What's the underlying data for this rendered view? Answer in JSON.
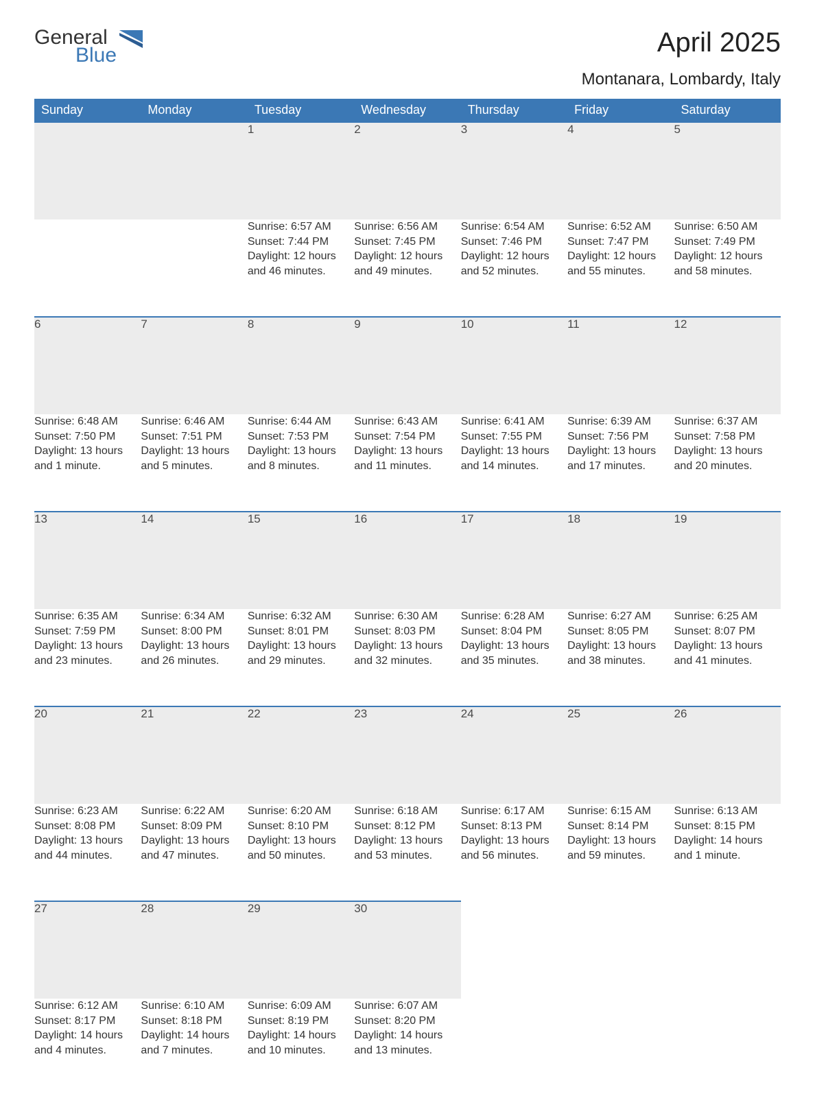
{
  "logo": {
    "general": "General",
    "blue": "Blue"
  },
  "title": "April 2025",
  "subtitle": "Montanara, Lombardy, Italy",
  "colors": {
    "header_bg": "#3b78b5",
    "header_text": "#ffffff",
    "daynum_bg": "#ececec",
    "row_border": "#3b78b5",
    "body_text": "#333333",
    "logo_blue": "#3b78b5"
  },
  "weekdays": [
    "Sunday",
    "Monday",
    "Tuesday",
    "Wednesday",
    "Thursday",
    "Friday",
    "Saturday"
  ],
  "weeks": [
    [
      null,
      null,
      {
        "day": "1",
        "sunrise": "6:57 AM",
        "sunset": "7:44 PM",
        "daylight": "12 hours and 46 minutes."
      },
      {
        "day": "2",
        "sunrise": "6:56 AM",
        "sunset": "7:45 PM",
        "daylight": "12 hours and 49 minutes."
      },
      {
        "day": "3",
        "sunrise": "6:54 AM",
        "sunset": "7:46 PM",
        "daylight": "12 hours and 52 minutes."
      },
      {
        "day": "4",
        "sunrise": "6:52 AM",
        "sunset": "7:47 PM",
        "daylight": "12 hours and 55 minutes."
      },
      {
        "day": "5",
        "sunrise": "6:50 AM",
        "sunset": "7:49 PM",
        "daylight": "12 hours and 58 minutes."
      }
    ],
    [
      {
        "day": "6",
        "sunrise": "6:48 AM",
        "sunset": "7:50 PM",
        "daylight": "13 hours and 1 minute."
      },
      {
        "day": "7",
        "sunrise": "6:46 AM",
        "sunset": "7:51 PM",
        "daylight": "13 hours and 5 minutes."
      },
      {
        "day": "8",
        "sunrise": "6:44 AM",
        "sunset": "7:53 PM",
        "daylight": "13 hours and 8 minutes."
      },
      {
        "day": "9",
        "sunrise": "6:43 AM",
        "sunset": "7:54 PM",
        "daylight": "13 hours and 11 minutes."
      },
      {
        "day": "10",
        "sunrise": "6:41 AM",
        "sunset": "7:55 PM",
        "daylight": "13 hours and 14 minutes."
      },
      {
        "day": "11",
        "sunrise": "6:39 AM",
        "sunset": "7:56 PM",
        "daylight": "13 hours and 17 minutes."
      },
      {
        "day": "12",
        "sunrise": "6:37 AM",
        "sunset": "7:58 PM",
        "daylight": "13 hours and 20 minutes."
      }
    ],
    [
      {
        "day": "13",
        "sunrise": "6:35 AM",
        "sunset": "7:59 PM",
        "daylight": "13 hours and 23 minutes."
      },
      {
        "day": "14",
        "sunrise": "6:34 AM",
        "sunset": "8:00 PM",
        "daylight": "13 hours and 26 minutes."
      },
      {
        "day": "15",
        "sunrise": "6:32 AM",
        "sunset": "8:01 PM",
        "daylight": "13 hours and 29 minutes."
      },
      {
        "day": "16",
        "sunrise": "6:30 AM",
        "sunset": "8:03 PM",
        "daylight": "13 hours and 32 minutes."
      },
      {
        "day": "17",
        "sunrise": "6:28 AM",
        "sunset": "8:04 PM",
        "daylight": "13 hours and 35 minutes."
      },
      {
        "day": "18",
        "sunrise": "6:27 AM",
        "sunset": "8:05 PM",
        "daylight": "13 hours and 38 minutes."
      },
      {
        "day": "19",
        "sunrise": "6:25 AM",
        "sunset": "8:07 PM",
        "daylight": "13 hours and 41 minutes."
      }
    ],
    [
      {
        "day": "20",
        "sunrise": "6:23 AM",
        "sunset": "8:08 PM",
        "daylight": "13 hours and 44 minutes."
      },
      {
        "day": "21",
        "sunrise": "6:22 AM",
        "sunset": "8:09 PM",
        "daylight": "13 hours and 47 minutes."
      },
      {
        "day": "22",
        "sunrise": "6:20 AM",
        "sunset": "8:10 PM",
        "daylight": "13 hours and 50 minutes."
      },
      {
        "day": "23",
        "sunrise": "6:18 AM",
        "sunset": "8:12 PM",
        "daylight": "13 hours and 53 minutes."
      },
      {
        "day": "24",
        "sunrise": "6:17 AM",
        "sunset": "8:13 PM",
        "daylight": "13 hours and 56 minutes."
      },
      {
        "day": "25",
        "sunrise": "6:15 AM",
        "sunset": "8:14 PM",
        "daylight": "13 hours and 59 minutes."
      },
      {
        "day": "26",
        "sunrise": "6:13 AM",
        "sunset": "8:15 PM",
        "daylight": "14 hours and 1 minute."
      }
    ],
    [
      {
        "day": "27",
        "sunrise": "6:12 AM",
        "sunset": "8:17 PM",
        "daylight": "14 hours and 4 minutes."
      },
      {
        "day": "28",
        "sunrise": "6:10 AM",
        "sunset": "8:18 PM",
        "daylight": "14 hours and 7 minutes."
      },
      {
        "day": "29",
        "sunrise": "6:09 AM",
        "sunset": "8:19 PM",
        "daylight": "14 hours and 10 minutes."
      },
      {
        "day": "30",
        "sunrise": "6:07 AM",
        "sunset": "8:20 PM",
        "daylight": "14 hours and 13 minutes."
      },
      null,
      null,
      null
    ]
  ],
  "labels": {
    "sunrise": "Sunrise: ",
    "sunset": "Sunset: ",
    "daylight": "Daylight: "
  }
}
